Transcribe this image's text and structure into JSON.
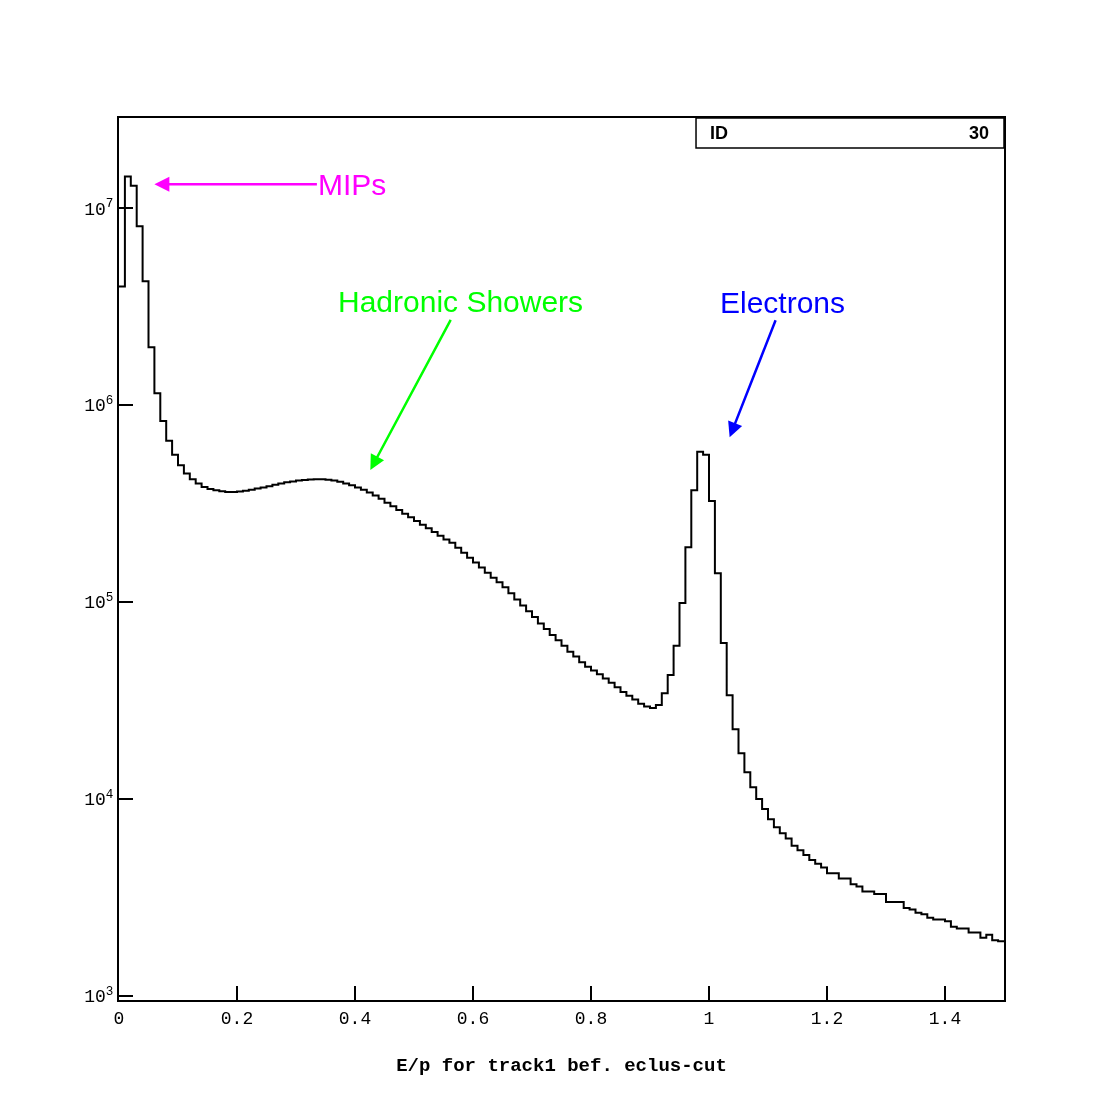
{
  "chart_data": {
    "type": "histogram",
    "xlabel": "E/p for track1 bef. eclus-cut",
    "color": "#000000",
    "bins": [
      0,
      0.01,
      0.02,
      0.03,
      0.04,
      0.05,
      0.06,
      0.07,
      0.08,
      0.09,
      0.1,
      0.11,
      0.12,
      0.13,
      0.14,
      0.15,
      0.16,
      0.17,
      0.18,
      0.19,
      0.2,
      0.21,
      0.22,
      0.23,
      0.24,
      0.25,
      0.26,
      0.27,
      0.28,
      0.29,
      0.3,
      0.31,
      0.32,
      0.33,
      0.34,
      0.35,
      0.36,
      0.37,
      0.38,
      0.39,
      0.4,
      0.41,
      0.42,
      0.43,
      0.44,
      0.45,
      0.46,
      0.47,
      0.48,
      0.49,
      0.5,
      0.51,
      0.52,
      0.53,
      0.54,
      0.55,
      0.56,
      0.57,
      0.58,
      0.59,
      0.6,
      0.61,
      0.62,
      0.63,
      0.64,
      0.65,
      0.66,
      0.67,
      0.68,
      0.69,
      0.7,
      0.71,
      0.72,
      0.73,
      0.74,
      0.75,
      0.76,
      0.77,
      0.78,
      0.79,
      0.8,
      0.81,
      0.82,
      0.83,
      0.84,
      0.85,
      0.86,
      0.87,
      0.88,
      0.89,
      0.9,
      0.91,
      0.92,
      0.93,
      0.94,
      0.95,
      0.96,
      0.97,
      0.98,
      0.99,
      1,
      1.01,
      1.02,
      1.03,
      1.04,
      1.05,
      1.06,
      1.07,
      1.08,
      1.09,
      1.1,
      1.11,
      1.12,
      1.13,
      1.14,
      1.15,
      1.16,
      1.17,
      1.18,
      1.19,
      1.2,
      1.21,
      1.22,
      1.23,
      1.24,
      1.25,
      1.26,
      1.27,
      1.28,
      1.29,
      1.3,
      1.31,
      1.32,
      1.33,
      1.34,
      1.35,
      1.36,
      1.37,
      1.38,
      1.39,
      1.4,
      1.41,
      1.42,
      1.43,
      1.44,
      1.45,
      1.46,
      1.47,
      1.48,
      1.49,
      1.5
    ],
    "values": [
      4000000,
      14500000,
      13000000,
      8100000,
      4260000,
      1970000,
      1150000,
      830000,
      660000,
      560000,
      496000,
      450000,
      420000,
      400000,
      384000,
      375000,
      370000,
      365000,
      362000,
      362000,
      364000,
      368000,
      372000,
      377000,
      382000,
      388000,
      394000,
      400000,
      406000,
      410000,
      414000,
      417000,
      419000,
      420000,
      420000,
      418000,
      414000,
      408000,
      400000,
      392000,
      382000,
      372000,
      360000,
      348000,
      335000,
      320000,
      307000,
      294000,
      281000,
      270000,
      258000,
      247000,
      237000,
      227000,
      217000,
      208000,
      200000,
      189000,
      178000,
      168000,
      159000,
      150000,
      141000,
      133000,
      126000,
      119000,
      111000,
      103000,
      96000,
      90000,
      84000,
      78000,
      73000,
      68000,
      64000,
      60000,
      56000,
      53000,
      49500,
      47000,
      45000,
      43000,
      41000,
      39000,
      37000,
      35000,
      33500,
      32000,
      30500,
      29500,
      29000,
      30000,
      34500,
      42600,
      60000,
      99000,
      190000,
      370000,
      580000,
      560000,
      326000,
      140000,
      62000,
      33700,
      22600,
      17100,
      13700,
      11500,
      10000,
      8900,
      7900,
      7200,
      6700,
      6300,
      5800,
      5500,
      5200,
      4900,
      4700,
      4500,
      4200,
      4200,
      3950,
      3950,
      3700,
      3600,
      3400,
      3400,
      3300,
      3300,
      3000,
      3000,
      3000,
      2800,
      2750,
      2650,
      2600,
      2500,
      2450,
      2450,
      2400,
      2250,
      2200,
      2200,
      2100,
      2100,
      1980,
      2050,
      1920,
      1900
    ],
    "log": "y",
    "xlim": [
      0,
      1.5
    ],
    "ylim": [
      955,
      28700000
    ],
    "xticks": [
      0,
      0.2,
      0.4,
      0.6,
      0.8,
      1,
      1.2,
      1.4
    ],
    "yticks": [
      {
        "value": 1000,
        "label": "10$^{3}$"
      },
      {
        "value": 10000,
        "label": "10$^{4}$"
      },
      {
        "value": 100000,
        "label": "10$^{5}$"
      },
      {
        "value": 1000000,
        "label": "10$^{6}$"
      },
      {
        "value": 10000000,
        "label": "10$^{7}$"
      }
    ],
    "annotations": [
      "MIPs",
      "Hadronic Showers",
      "Electrons",
      "ID",
      "30"
    ]
  }
}
